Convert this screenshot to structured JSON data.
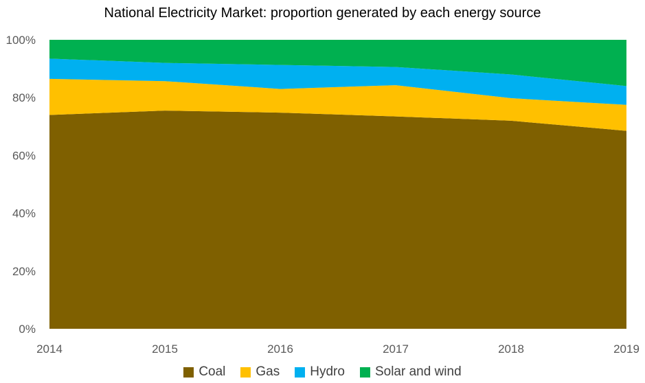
{
  "chart_data": {
    "type": "area",
    "stacked": true,
    "title": "National Electricity Market: proportion generated by each energy source",
    "x": [
      "2014",
      "2015",
      "2016",
      "2017",
      "2018",
      "2019"
    ],
    "y_ticks": [
      "0%",
      "20%",
      "40%",
      "60%",
      "80%",
      "100%"
    ],
    "ylim": [
      0,
      100
    ],
    "grid": false,
    "legend_position": "bottom",
    "series": [
      {
        "name": "Coal",
        "color": "#7f6000",
        "values": [
          74,
          75.5,
          74.8,
          73.5,
          72,
          68.5
        ]
      },
      {
        "name": "Gas",
        "color": "#ffc000",
        "values": [
          12.5,
          10.2,
          8.2,
          10.8,
          7.8,
          9
        ]
      },
      {
        "name": "Hydro",
        "color": "#00b0f0",
        "values": [
          7,
          6.3,
          8.3,
          6.3,
          8.2,
          6.5
        ]
      },
      {
        "name": "Solar and wind",
        "color": "#00b050",
        "values": [
          6.5,
          8,
          8.7,
          9.4,
          12,
          16
        ]
      }
    ]
  }
}
